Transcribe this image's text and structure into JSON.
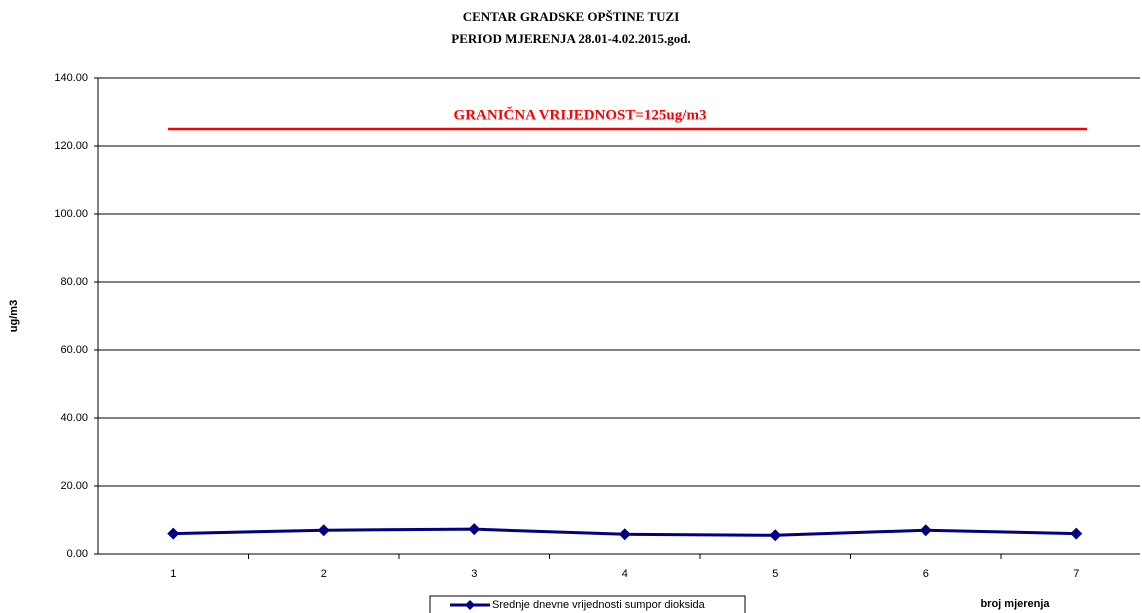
{
  "chart_data": {
    "type": "line",
    "title": [
      "CENTAR GRADSKE OPŠTINE TUZI",
      "PERIOD MJERENJA 28.01-4.02.2015.god."
    ],
    "y_label": "ug/m3",
    "x_label": "broj mjerenja",
    "categories": [
      "1",
      "2",
      "3",
      "4",
      "5",
      "6",
      "7"
    ],
    "series": [
      {
        "name": "Srednje dnevne vrijednosti sumpor dioksida",
        "color": "#000080",
        "values": [
          6.0,
          7.0,
          7.3,
          5.8,
          5.5,
          7.0,
          6.0
        ]
      }
    ],
    "ylim": [
      0,
      140
    ],
    "yticks": [
      {
        "value": 0,
        "label": "0.00"
      },
      {
        "value": 20,
        "label": "20.00"
      },
      {
        "value": 40,
        "label": "40.00"
      },
      {
        "value": 60,
        "label": "60.00"
      },
      {
        "value": 80,
        "label": "80.00"
      },
      {
        "value": 100,
        "label": "100.00"
      },
      {
        "value": 120,
        "label": "120.00"
      },
      {
        "value": 140,
        "label": "140.00"
      }
    ],
    "grid": true,
    "limit_line": {
      "value": 125,
      "label": "GRANIČNA VRIJEDNOST=125ug/m3",
      "color": "#ff0000"
    }
  }
}
